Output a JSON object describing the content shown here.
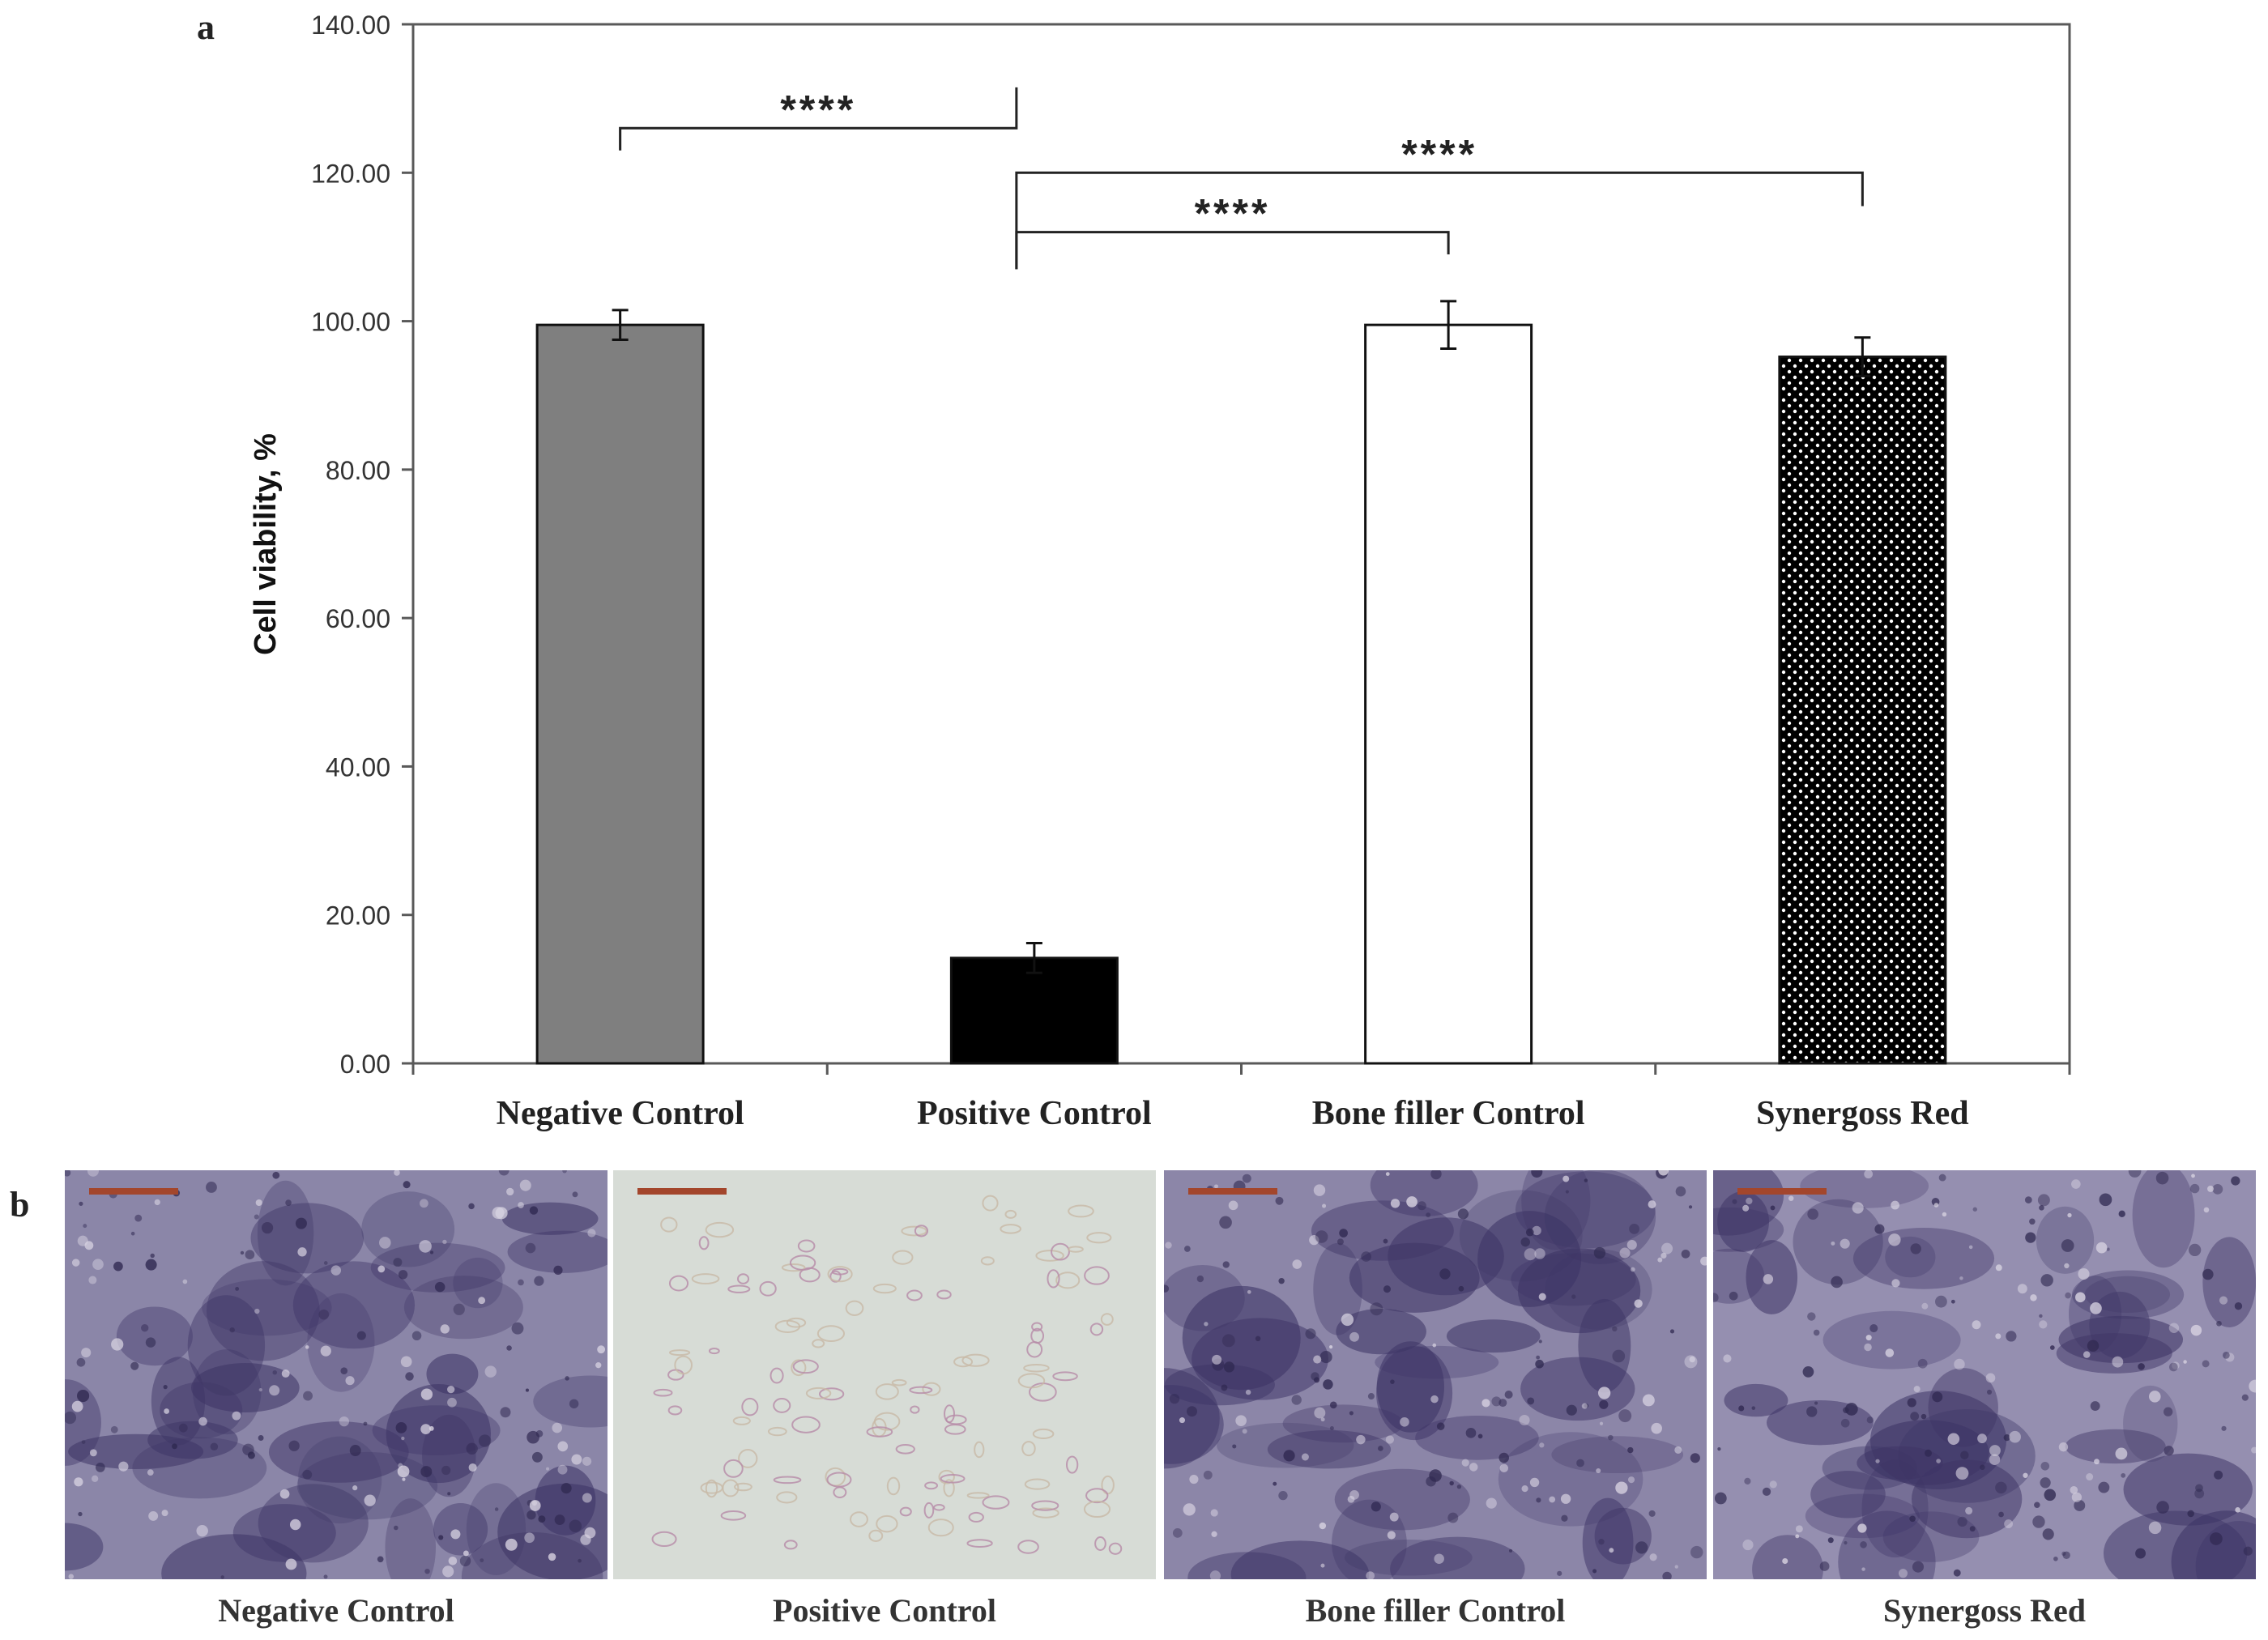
{
  "panel_labels": {
    "a": "a",
    "b": "b"
  },
  "chart_data": {
    "type": "bar",
    "ylabel": "Cell viability, %",
    "ylim": [
      0,
      140
    ],
    "yticks": [
      0,
      20,
      40,
      60,
      80,
      100,
      120,
      140
    ],
    "ytick_labels": [
      "0.00",
      "20.00",
      "40.00",
      "60.00",
      "80.00",
      "100.00",
      "120.00",
      "140.00"
    ],
    "categories": [
      "Negative Control",
      "Positive Control",
      "Bone filler Control",
      "Synergoss Red"
    ],
    "values": [
      99.5,
      14.2,
      99.5,
      95.2
    ],
    "errors": [
      2.0,
      2.0,
      3.2,
      2.6
    ],
    "bar_styles": [
      {
        "fill": "#7f7f7f",
        "pattern": "solid"
      },
      {
        "fill": "#000000",
        "pattern": "solid"
      },
      {
        "fill": "#ffffff",
        "pattern": "solid"
      },
      {
        "fill": "#000000",
        "pattern": "white-dots"
      }
    ],
    "significance": [
      {
        "from": 0,
        "to": 1,
        "label": "****",
        "bracket_level": 126,
        "left_tick_end": 123,
        "right_tick_end": 131.5
      },
      {
        "from": 1,
        "to": 2,
        "label": "****",
        "bracket_level": 112,
        "left_tick_end": 107,
        "right_tick_end": 109
      },
      {
        "from": 1,
        "to": 3,
        "label": "****",
        "bracket_level": 120,
        "left_tick_end": 107,
        "right_tick_end": 115.5
      }
    ]
  },
  "micrographs": [
    {
      "caption": "Negative Control",
      "stain": "dense-purple",
      "base_color": "#8b86a8"
    },
    {
      "caption": "Positive Control",
      "stain": "sparse-pink",
      "base_color": "#d7dcd6"
    },
    {
      "caption": "Bone filler Control",
      "stain": "dense-purple",
      "base_color": "#8c86a8"
    },
    {
      "caption": "Synergoss Red",
      "stain": "dense-purple",
      "base_color": "#958fb0"
    }
  ]
}
